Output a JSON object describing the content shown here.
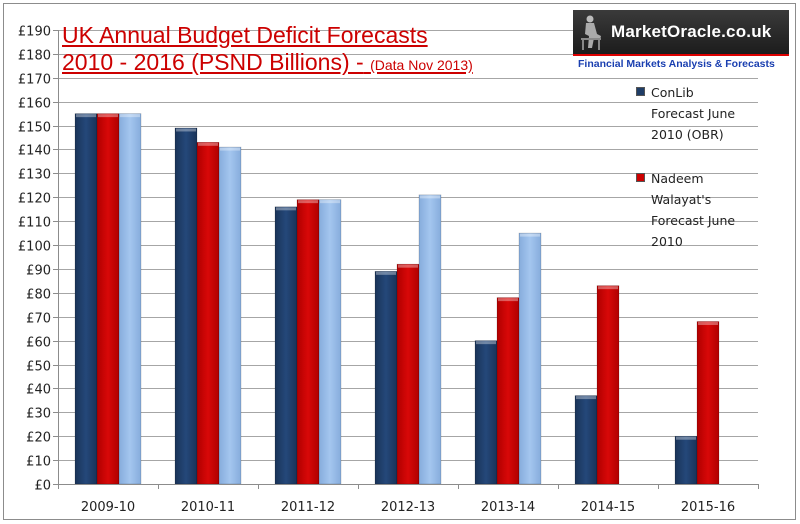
{
  "chart_data": {
    "type": "bar",
    "title": "UK Annual Budget Deficit Forecasts",
    "subtitle": "2010 - 2016 (PSND Billions) -",
    "subtitle_note": "(Data Nov 2013)",
    "xlabel": "",
    "ylabel": "",
    "ylim": [
      0,
      190
    ],
    "ytick_step": 10,
    "yticks": [
      "£0",
      "£10",
      "£20",
      "£30",
      "£40",
      "£50",
      "£60",
      "£70",
      "£80",
      "£90",
      "£100",
      "£110",
      "£120",
      "£130",
      "£140",
      "£150",
      "£160",
      "£170",
      "£180",
      "£190"
    ],
    "grid": true,
    "legend_position": "right",
    "categories": [
      "2009-10",
      "2010-11",
      "2011-12",
      "2012-13",
      "2013-14",
      "2014-15",
      "2015-16"
    ],
    "series": [
      {
        "name": "ConLib Forecast June 2010 (OBR)",
        "legend_lines": [
          "ConLib",
          "Forecast June",
          "2010 (OBR)"
        ],
        "color": "#1f3d66",
        "values": [
          155,
          149,
          116,
          89,
          60,
          37,
          20
        ]
      },
      {
        "name": "Nadeem Walayat's Forecast June 2010",
        "legend_lines": [
          "Nadeem",
          "Walayat's",
          "Forecast June",
          "2010"
        ],
        "color": "#cc0000",
        "values": [
          155,
          143,
          119,
          92,
          78,
          83,
          68
        ]
      },
      {
        "name": "",
        "color": "#9abde8",
        "values": [
          155,
          141,
          119,
          121,
          105,
          null,
          null
        ]
      }
    ]
  },
  "logo": {
    "name": "MarketOracle.co.uk",
    "tagline": "Financial Markets Analysis & Forecasts"
  }
}
